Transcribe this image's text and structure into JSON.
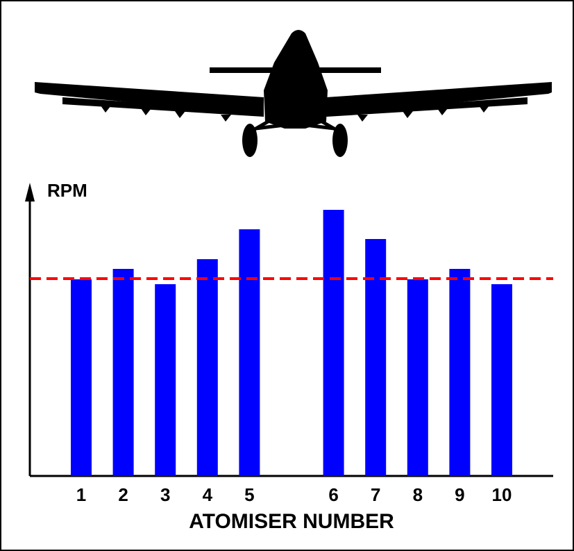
{
  "chart_data": {
    "type": "bar",
    "y_label": "RPM",
    "x_label": "ATOMISER NUMBER",
    "categories": [
      "1",
      "2",
      "3",
      "4",
      "5",
      null,
      "6",
      "7",
      "8",
      "9",
      "10"
    ],
    "values": [
      283,
      298,
      276,
      312,
      355,
      null,
      383,
      341,
      283,
      298,
      276
    ],
    "color": "#0000ff",
    "ylim": [
      0,
      420
    ],
    "reference_line": {
      "value": 284,
      "color": "#ff0000",
      "style": "dashed"
    }
  }
}
